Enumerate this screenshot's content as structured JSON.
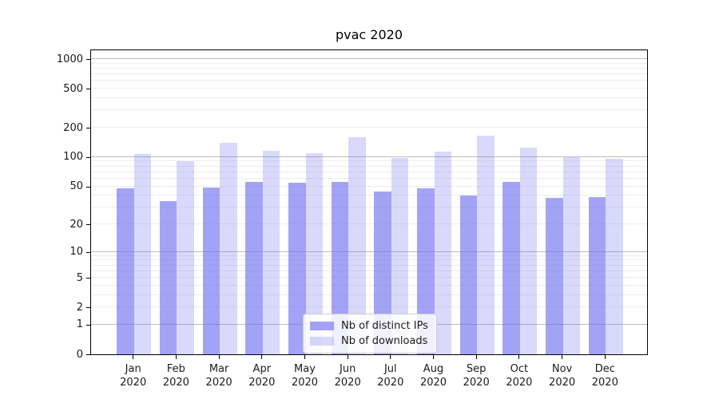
{
  "title": "pvac 2020",
  "legend": {
    "items": [
      {
        "label": "Nb of distinct IPs",
        "color": "rgba(102,102,240,0.60)",
        "color_hex": "#a3a3f6"
      },
      {
        "label": "Nb of downloads",
        "color": "rgba(102,102,240,0.25)",
        "color_hex": "#d8d8fb"
      }
    ]
  },
  "y_axis": {
    "tick_labels": [
      "0",
      "1",
      "2",
      "5",
      "10",
      "20",
      "50",
      "100",
      "200",
      "500",
      "1000"
    ],
    "tick_values": [
      0,
      1,
      2,
      5,
      10,
      20,
      50,
      100,
      200,
      500,
      1000
    ]
  },
  "x_axis": {
    "month_labels": [
      "Jan",
      "Feb",
      "Mar",
      "Apr",
      "May",
      "Jun",
      "Jul",
      "Aug",
      "Sep",
      "Oct",
      "Nov",
      "Dec"
    ],
    "year_label": "2020"
  },
  "grid_colors": {
    "major": "#bdbdbd",
    "minor": "#ededed"
  },
  "chart_data": {
    "type": "bar",
    "title": "pvac 2020",
    "categories": [
      "Jan 2020",
      "Feb 2020",
      "Mar 2020",
      "Apr 2020",
      "May 2020",
      "Jun 2020",
      "Jul 2020",
      "Aug 2020",
      "Sep 2020",
      "Oct 2020",
      "Nov 2020",
      "Dec 2020"
    ],
    "series": [
      {
        "name": "Nb of distinct IPs",
        "values": [
          48,
          35,
          49,
          56,
          54,
          55,
          44,
          48,
          40,
          56,
          38,
          39
        ]
      },
      {
        "name": "Nb of downloads",
        "values": [
          107,
          90,
          140,
          115,
          110,
          160,
          98,
          114,
          166,
          124,
          100,
          97
        ]
      }
    ],
    "xlabel": "",
    "ylabel": "",
    "yscale": "symlog (position ~ ln(1+y))",
    "yticks": [
      0,
      1,
      2,
      5,
      10,
      20,
      50,
      100,
      200,
      500,
      1000
    ],
    "ylim": [
      0,
      1250
    ],
    "grid": true,
    "legend_position": "lower center"
  }
}
